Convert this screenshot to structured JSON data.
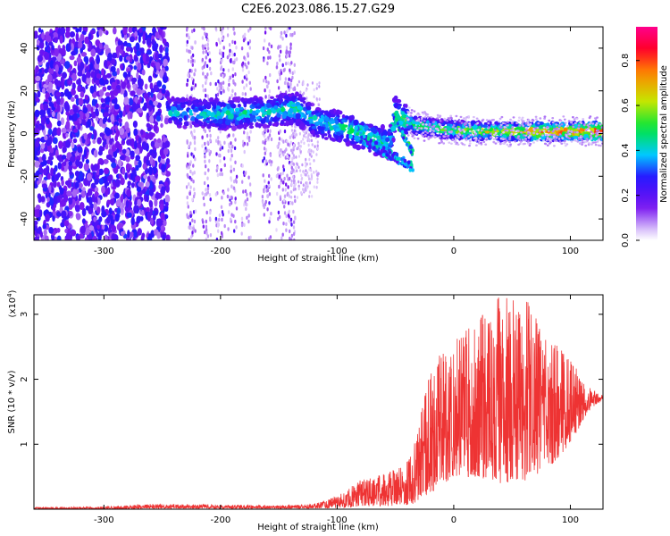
{
  "title": "C2E6.2023.086.15.27.G29",
  "chart_data": [
    {
      "type": "heatmap",
      "xlabel": "Height of straight line (km)",
      "ylabel": "Frequency (Hz)",
      "xlim": [
        -360,
        128
      ],
      "ylim": [
        -50,
        50
      ],
      "xticks": [
        -300,
        -200,
        -100,
        0,
        100
      ],
      "yticks": [
        -40,
        -20,
        0,
        20,
        40
      ],
      "xtick_labels": [
        "-300",
        "-200",
        "-100",
        "0",
        "100"
      ],
      "ytick_labels": [
        "-40",
        "-20",
        "0",
        "20",
        "40"
      ],
      "colorbar": {
        "label": "Normalized spectral amplitude",
        "range": [
          0.0,
          0.95
        ],
        "ticks": [
          0.0,
          0.2,
          0.4,
          0.6,
          0.8
        ],
        "tick_labels": [
          "0.0",
          "0.2",
          "0.4",
          "0.6",
          "0.8"
        ]
      },
      "ridge": [
        {
          "x": -243,
          "f": 10,
          "amp": 0.45
        },
        {
          "x": -200,
          "f": 9,
          "amp": 0.5
        },
        {
          "x": -160,
          "f": 10,
          "amp": 0.5
        },
        {
          "x": -135,
          "f": 12,
          "amp": 0.55
        },
        {
          "x": -120,
          "f": 6,
          "amp": 0.5
        },
        {
          "x": -90,
          "f": 2,
          "amp": 0.55
        },
        {
          "x": -70,
          "f": -2,
          "amp": 0.55
        },
        {
          "x": -55,
          "f": -5,
          "amp": 0.5
        },
        {
          "x": -50,
          "f": 10,
          "amp": 0.55
        },
        {
          "x": -35,
          "f": 4,
          "amp": 0.6
        },
        {
          "x": -10,
          "f": 2,
          "amp": 0.6
        },
        {
          "x": 20,
          "f": 1,
          "amp": 0.7
        },
        {
          "x": 60,
          "f": 1,
          "amp": 0.8
        },
        {
          "x": 100,
          "f": 1,
          "amp": 0.9
        },
        {
          "x": 128,
          "f": 1,
          "amp": 0.95
        }
      ]
    },
    {
      "type": "line",
      "xlabel": "Height of straight line (km)",
      "ylabel": "SNR (10 * v/v)",
      "yscale_label": "(x10",
      "yscale_exp": "4",
      "yscale_close": ")",
      "xlim": [
        -360,
        128
      ],
      "ylim": [
        0,
        3.3
      ],
      "xticks": [
        -300,
        -200,
        -100,
        0,
        100
      ],
      "yticks": [
        1,
        2,
        3
      ],
      "xtick_labels": [
        "-300",
        "-200",
        "-100",
        "0",
        "100"
      ],
      "ytick_labels": [
        "1",
        "2",
        "3"
      ],
      "series": [
        {
          "color": "#ee3333",
          "envelope": [
            {
              "x": -360,
              "lo": 0.0,
              "hi": 0.03
            },
            {
              "x": -300,
              "lo": 0.0,
              "hi": 0.04
            },
            {
              "x": -260,
              "lo": 0.01,
              "hi": 0.08
            },
            {
              "x": -200,
              "lo": 0.01,
              "hi": 0.07
            },
            {
              "x": -150,
              "lo": 0.01,
              "hi": 0.06
            },
            {
              "x": -120,
              "lo": 0.01,
              "hi": 0.08
            },
            {
              "x": -100,
              "lo": 0.02,
              "hi": 0.2
            },
            {
              "x": -80,
              "lo": 0.04,
              "hi": 0.45
            },
            {
              "x": -60,
              "lo": 0.05,
              "hi": 0.55
            },
            {
              "x": -45,
              "lo": 0.05,
              "hi": 0.65
            },
            {
              "x": -35,
              "lo": 0.08,
              "hi": 0.9
            },
            {
              "x": -25,
              "lo": 0.2,
              "hi": 1.8
            },
            {
              "x": -15,
              "lo": 0.3,
              "hi": 2.4
            },
            {
              "x": 0,
              "lo": 0.5,
              "hi": 2.6
            },
            {
              "x": 20,
              "lo": 0.5,
              "hi": 2.9
            },
            {
              "x": 40,
              "lo": 0.4,
              "hi": 3.3
            },
            {
              "x": 60,
              "lo": 0.4,
              "hi": 3.3
            },
            {
              "x": 80,
              "lo": 0.6,
              "hi": 2.7
            },
            {
              "x": 100,
              "lo": 1.0,
              "hi": 2.3
            },
            {
              "x": 115,
              "lo": 1.5,
              "hi": 1.9
            },
            {
              "x": 128,
              "lo": 1.7,
              "hi": 1.75
            }
          ]
        }
      ]
    }
  ]
}
